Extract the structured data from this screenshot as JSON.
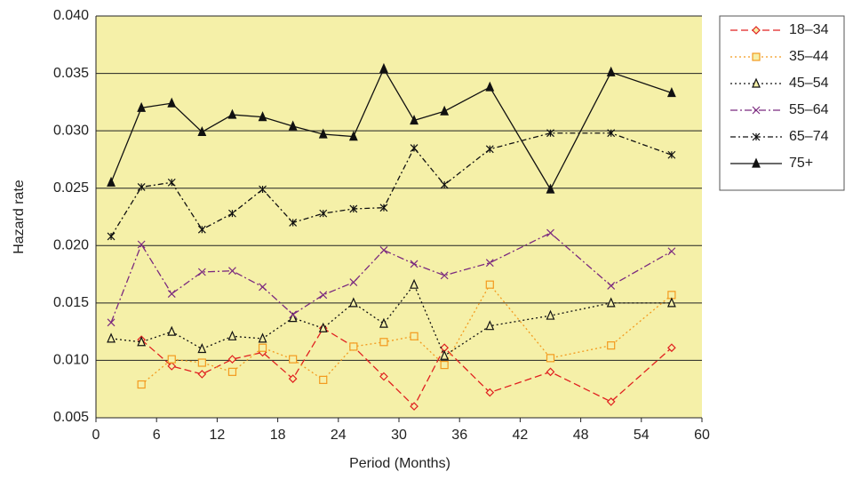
{
  "chart_data": {
    "type": "line",
    "x_label": "Period (Months)",
    "y_label": "Hazard rate",
    "x": [
      1.5,
      4.5,
      7.5,
      10.5,
      13.5,
      16.5,
      19.5,
      22.5,
      25.5,
      28.5,
      31.5,
      34.5,
      39,
      45,
      51,
      57
    ],
    "series": [
      {
        "name": "18–34",
        "color": "#e02020",
        "dash": "8,4",
        "marker": "diamond",
        "values": [
          null,
          0.0118,
          0.0095,
          0.0088,
          0.0101,
          0.0107,
          0.0084,
          0.0128,
          0.0112,
          0.0086,
          0.006,
          0.0111,
          0.0072,
          0.009,
          0.0064,
          0.0111
        ]
      },
      {
        "name": "35–44",
        "color": "#f39a1e",
        "dash": "2,3",
        "marker": "square",
        "values": [
          null,
          0.0079,
          0.0101,
          0.0098,
          0.009,
          0.0111,
          0.0101,
          0.0083,
          0.0112,
          0.0116,
          0.0121,
          0.0096,
          0.0166,
          0.0102,
          0.0113,
          0.0157
        ]
      },
      {
        "name": "45–54",
        "color": "#111111",
        "dash": "2,3",
        "marker": "triangle-open",
        "values": [
          0.0119,
          0.0116,
          0.0125,
          0.011,
          0.0121,
          0.0119,
          0.0137,
          0.0128,
          0.015,
          0.0132,
          0.0166,
          0.0104,
          0.013,
          0.0139,
          0.015,
          0.015
        ]
      },
      {
        "name": "55–64",
        "color": "#7b2a7f",
        "dash": "8,3,2,3",
        "marker": "x",
        "values": [
          0.0133,
          0.0201,
          0.0158,
          0.0177,
          0.0178,
          0.0164,
          0.014,
          0.0157,
          0.0168,
          0.0196,
          0.0184,
          0.0174,
          0.0185,
          0.0211,
          0.0165,
          0.0195
        ]
      },
      {
        "name": "65–74",
        "color": "#111111",
        "dash": "6,3,2,3",
        "marker": "star",
        "values": [
          0.0208,
          0.0251,
          0.0255,
          0.0214,
          0.0228,
          0.0249,
          0.022,
          0.0228,
          0.0232,
          0.0233,
          0.0285,
          0.0253,
          0.0284,
          0.0298,
          0.0298,
          0.0279
        ]
      },
      {
        "name": "75+",
        "color": "#111111",
        "dash": "none",
        "marker": "triangle",
        "values": [
          0.0255,
          0.032,
          0.0324,
          0.0299,
          0.0314,
          0.0312,
          0.0304,
          0.0297,
          0.0295,
          0.0354,
          0.0309,
          0.0317,
          0.0338,
          0.0249,
          0.0351,
          0.0333
        ]
      }
    ],
    "xlim": [
      0,
      60
    ],
    "xticks": [
      0,
      6,
      12,
      18,
      24,
      30,
      36,
      42,
      48,
      54,
      60
    ],
    "ylim": [
      0.005,
      0.04
    ],
    "yticks": [
      {
        "value": 0.005,
        "label": "0.005"
      },
      {
        "value": 0.01,
        "label": "0.010"
      },
      {
        "value": 0.015,
        "label": "0.015"
      },
      {
        "value": 0.02,
        "label": "0.020"
      },
      {
        "value": 0.025,
        "label": "0.025"
      },
      {
        "value": 0.03,
        "label": "0.030"
      },
      {
        "value": 0.035,
        "label": "0.035"
      },
      {
        "value": 0.04,
        "label": "0.040"
      }
    ],
    "grid": true,
    "legend": "top-right",
    "background": "#f5f0a8"
  }
}
